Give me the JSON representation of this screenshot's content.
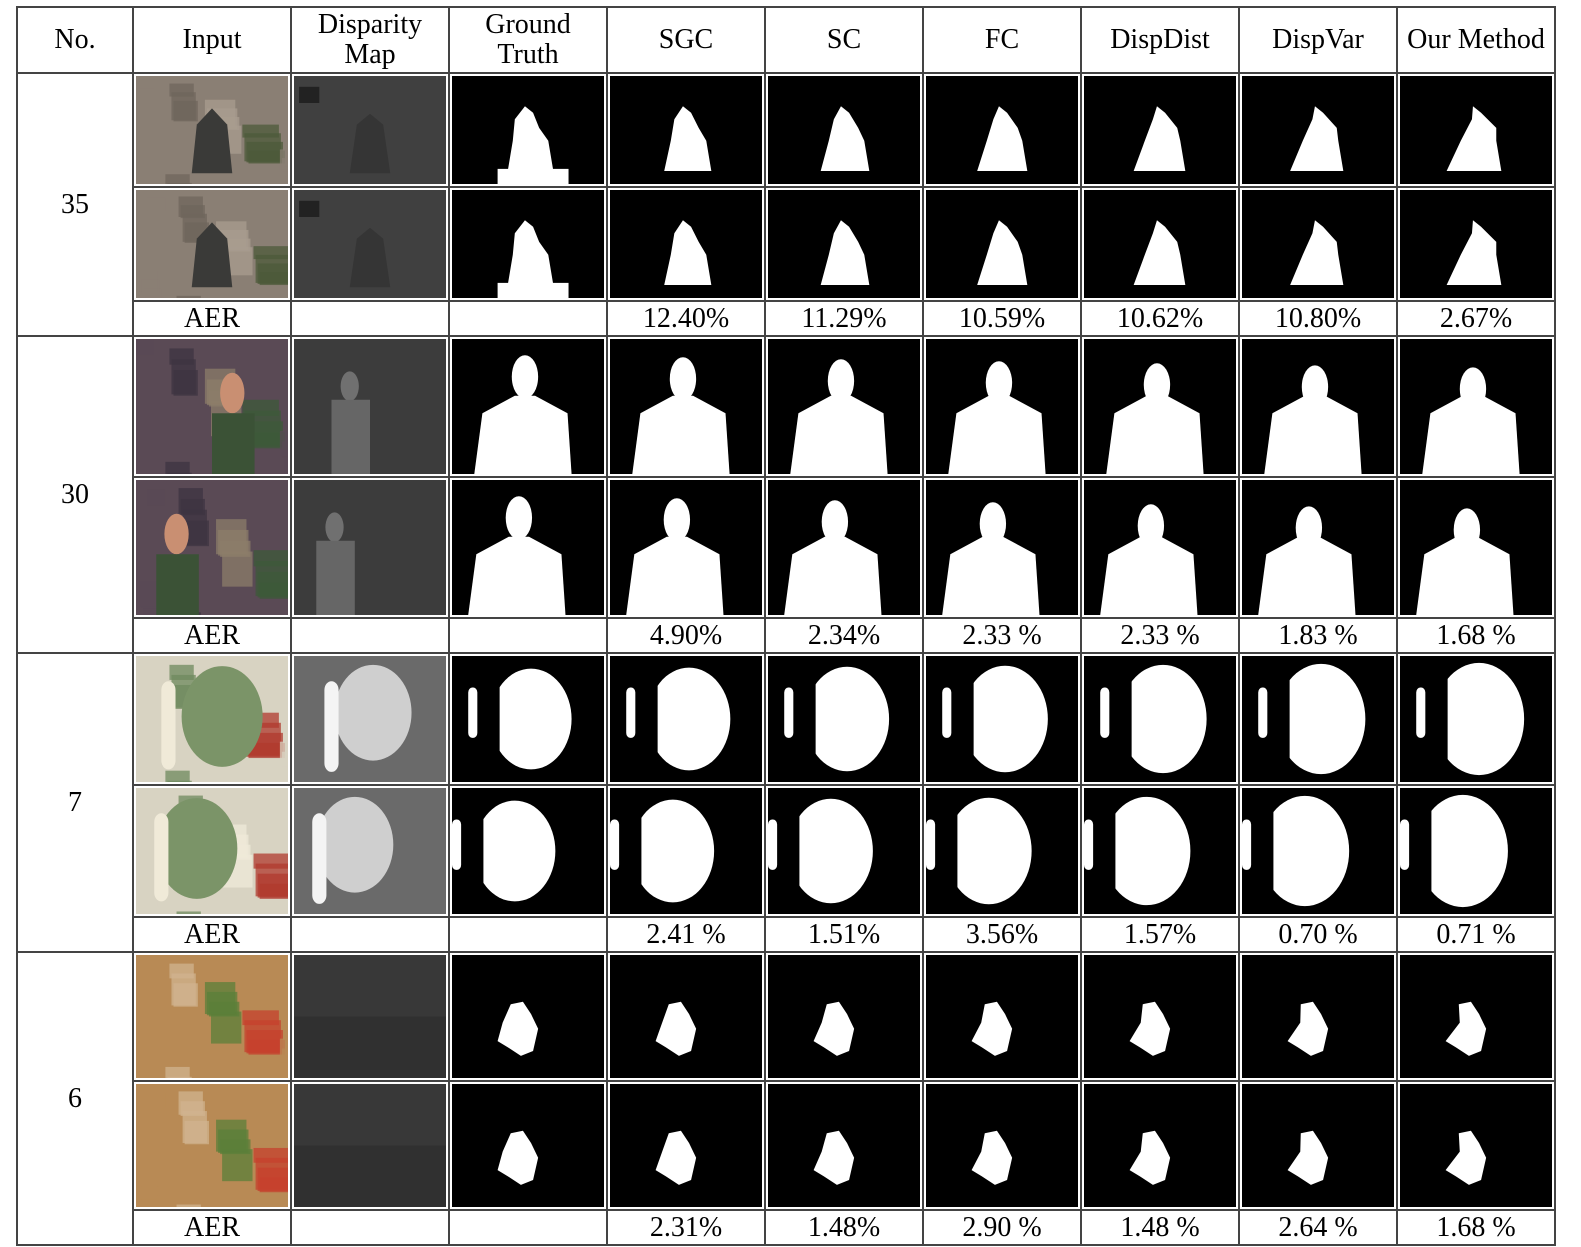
{
  "headers": [
    "No.",
    "Input",
    "Disparity Map",
    "Ground Truth",
    "SGC",
    "SC",
    "FC",
    "DispDist",
    "DispVar",
    "Our Method"
  ],
  "aer_label": "AER",
  "rows": [
    {
      "no": "35",
      "subject": "statue",
      "aer": [
        "12.40%",
        "11.29%",
        "10.59%",
        "10.62%",
        "10.80%",
        "2.67%"
      ],
      "best": [
        5
      ]
    },
    {
      "no": "30",
      "subject": "person",
      "aer": [
        "4.90%",
        "2.34%",
        "2.33 %",
        "2.33 %",
        "1.83 %",
        "1.68 %"
      ],
      "best": [
        5
      ]
    },
    {
      "no": "7",
      "subject": "ball",
      "aer": [
        "2.41 %",
        "1.51%",
        "3.56%",
        "1.57%",
        "0.70 %",
        "0.71 %"
      ],
      "best": [
        4
      ]
    },
    {
      "no": "6",
      "subject": "doll",
      "aer": [
        "2.31%",
        "1.48%",
        "2.90 %",
        "1.48 %",
        "2.64 %",
        "1.68 %"
      ],
      "best": [
        1,
        3
      ]
    }
  ]
}
